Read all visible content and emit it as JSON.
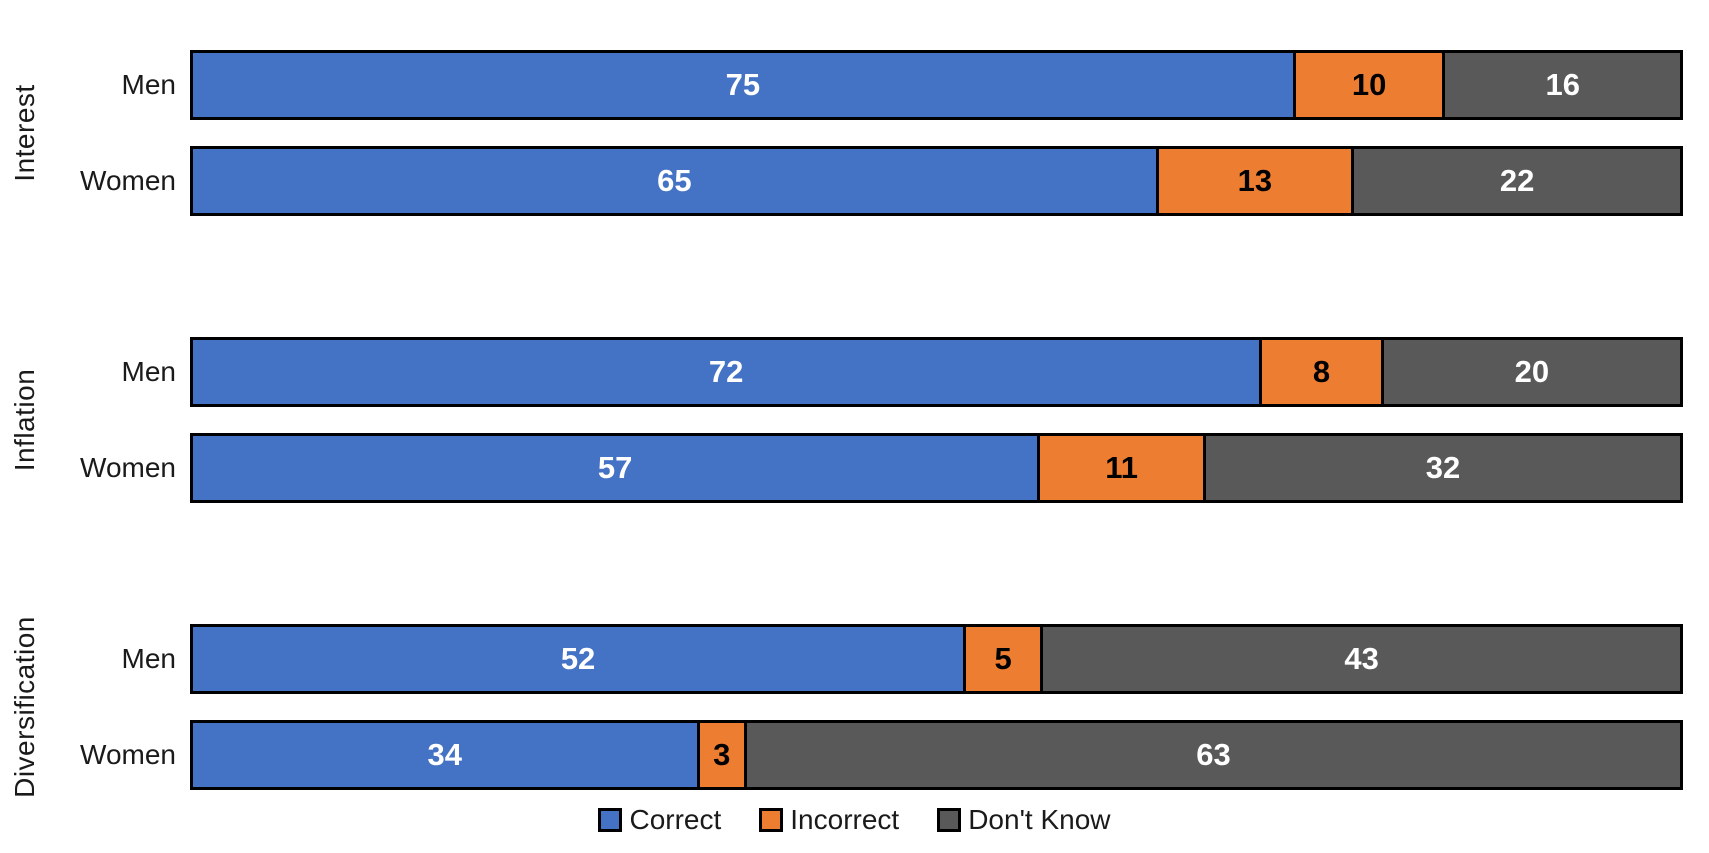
{
  "chart_data": {
    "type": "bar",
    "orientation": "horizontal",
    "stacked": true,
    "percent_scale": true,
    "title": "",
    "xlabel": "",
    "ylabel": "",
    "grid": false,
    "legend_position": "bottom",
    "series": [
      {
        "name": "Correct",
        "color": "#4472C4",
        "label_color": "#FFFFFF"
      },
      {
        "name": "Incorrect",
        "color": "#ED7D31",
        "label_color": "#000000"
      },
      {
        "name": "Don't Know",
        "color": "#595959",
        "label_color": "#FFFFFF"
      }
    ],
    "groups": [
      {
        "label": "Interest",
        "rows": [
          {
            "label": "Men",
            "values": [
              75,
              10,
              16
            ]
          },
          {
            "label": "Women",
            "values": [
              65,
              13,
              22
            ]
          }
        ]
      },
      {
        "label": "Inflation",
        "rows": [
          {
            "label": "Men",
            "values": [
              72,
              8,
              20
            ]
          },
          {
            "label": "Women",
            "values": [
              57,
              11,
              32
            ]
          }
        ]
      },
      {
        "label": "Diversification",
        "rows": [
          {
            "label": "Men",
            "values": [
              52,
              5,
              43
            ]
          },
          {
            "label": "Women",
            "values": [
              34,
              3,
              63
            ]
          }
        ]
      }
    ]
  }
}
